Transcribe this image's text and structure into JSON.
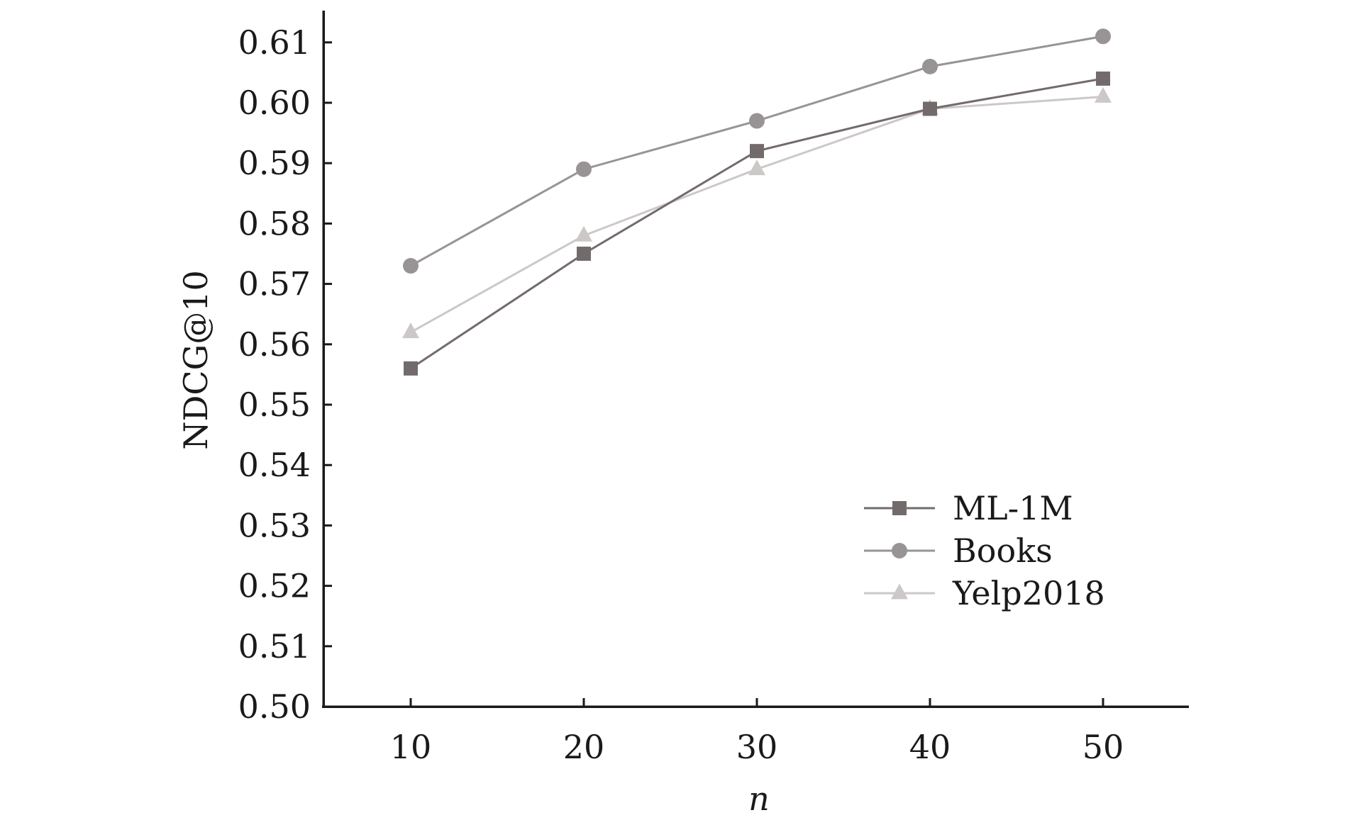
{
  "chart_data": {
    "type": "line",
    "title": "",
    "xlabel": "n",
    "ylabel": "NDCG@10",
    "x": [
      10,
      20,
      30,
      40,
      50
    ],
    "x_ticks": [
      "10",
      "20",
      "30",
      "40",
      "50"
    ],
    "xlim": [
      5,
      55
    ],
    "ylim": [
      0.5,
      0.615
    ],
    "y_ticks": [
      "0.50",
      "0.51",
      "0.52",
      "0.53",
      "0.54",
      "0.55",
      "0.56",
      "0.57",
      "0.58",
      "0.59",
      "0.60",
      "0.61"
    ],
    "grid": false,
    "legend_position": "bottom-right",
    "series": [
      {
        "name": "ML-1M",
        "marker": "square",
        "color": "#736b6b",
        "values": [
          0.556,
          0.575,
          0.592,
          0.599,
          0.604
        ]
      },
      {
        "name": "Books",
        "marker": "circle",
        "color": "#989394",
        "values": [
          0.573,
          0.589,
          0.597,
          0.606,
          0.611
        ]
      },
      {
        "name": "Yelp2018",
        "marker": "triangle",
        "color": "#cdc8c8",
        "values": [
          0.562,
          0.578,
          0.589,
          0.599,
          0.601
        ]
      }
    ]
  }
}
